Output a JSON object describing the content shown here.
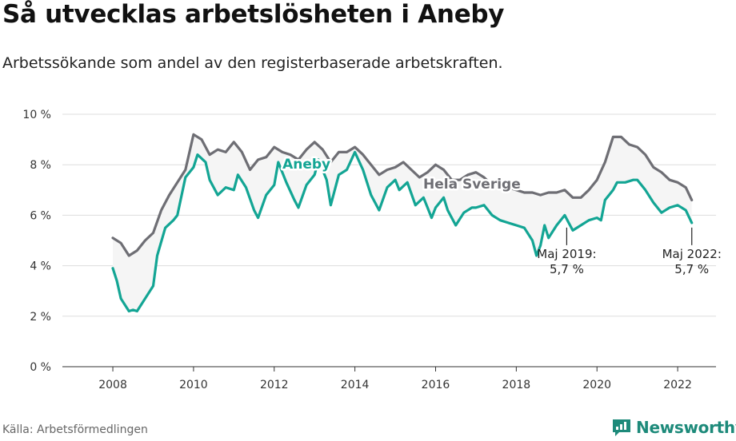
{
  "title": "Så utvecklas arbetslösheten i Aneby",
  "subtitle": "Arbetssökande som andel av den registerbaserade arbetskraften.",
  "source": "Källa: Arbetsförmedlingen",
  "brand": "Newsworthy",
  "colors": {
    "aneby": "#13a594",
    "sverige": "#6e6e74",
    "band": "#f5f5f5",
    "grid": "#dddddd",
    "brand": "#1d8a7a"
  },
  "chart_data": {
    "type": "line",
    "x_unit": "year",
    "xlim": [
      2006.75,
      2022.95
    ],
    "ylim": [
      0,
      10
    ],
    "y_ticks": [
      0,
      2,
      4,
      6,
      8,
      10
    ],
    "y_tick_labels": [
      "0 %",
      "2 %",
      "4 %",
      "6 %",
      "8 %",
      "10 %"
    ],
    "x_ticks": [
      2008,
      2010,
      2012,
      2014,
      2016,
      2018,
      2020,
      2022
    ],
    "x_tick_labels": [
      "2008",
      "2010",
      "2012",
      "2014",
      "2016",
      "2018",
      "2020",
      "2022"
    ],
    "grid": true,
    "series": [
      {
        "name": "Hela Sverige",
        "points": [
          [
            2008.0,
            5.1
          ],
          [
            2008.2,
            4.9
          ],
          [
            2008.4,
            4.4
          ],
          [
            2008.6,
            4.6
          ],
          [
            2008.8,
            5.0
          ],
          [
            2009.0,
            5.3
          ],
          [
            2009.2,
            6.2
          ],
          [
            2009.4,
            6.8
          ],
          [
            2009.6,
            7.3
          ],
          [
            2009.8,
            7.8
          ],
          [
            2010.0,
            9.2
          ],
          [
            2010.2,
            9.0
          ],
          [
            2010.4,
            8.4
          ],
          [
            2010.6,
            8.6
          ],
          [
            2010.8,
            8.5
          ],
          [
            2011.0,
            8.9
          ],
          [
            2011.2,
            8.5
          ],
          [
            2011.4,
            7.8
          ],
          [
            2011.6,
            8.2
          ],
          [
            2011.8,
            8.3
          ],
          [
            2012.0,
            8.7
          ],
          [
            2012.2,
            8.5
          ],
          [
            2012.4,
            8.4
          ],
          [
            2012.6,
            8.2
          ],
          [
            2012.8,
            8.6
          ],
          [
            2013.0,
            8.9
          ],
          [
            2013.2,
            8.6
          ],
          [
            2013.4,
            8.1
          ],
          [
            2013.6,
            8.5
          ],
          [
            2013.8,
            8.5
          ],
          [
            2014.0,
            8.7
          ],
          [
            2014.2,
            8.4
          ],
          [
            2014.4,
            8.0
          ],
          [
            2014.6,
            7.6
          ],
          [
            2014.8,
            7.8
          ],
          [
            2015.0,
            7.9
          ],
          [
            2015.2,
            8.1
          ],
          [
            2015.4,
            7.8
          ],
          [
            2015.6,
            7.5
          ],
          [
            2015.8,
            7.7
          ],
          [
            2016.0,
            8.0
          ],
          [
            2016.2,
            7.8
          ],
          [
            2016.4,
            7.4
          ],
          [
            2016.6,
            7.4
          ],
          [
            2016.8,
            7.6
          ],
          [
            2017.0,
            7.7
          ],
          [
            2017.2,
            7.5
          ],
          [
            2017.4,
            7.2
          ],
          [
            2017.6,
            7.3
          ],
          [
            2017.8,
            7.1
          ],
          [
            2018.0,
            7.0
          ],
          [
            2018.2,
            6.9
          ],
          [
            2018.4,
            6.9
          ],
          [
            2018.6,
            6.8
          ],
          [
            2018.8,
            6.9
          ],
          [
            2019.0,
            6.9
          ],
          [
            2019.2,
            7.0
          ],
          [
            2019.4,
            6.7
          ],
          [
            2019.6,
            6.7
          ],
          [
            2019.8,
            7.0
          ],
          [
            2020.0,
            7.4
          ],
          [
            2020.2,
            8.1
          ],
          [
            2020.4,
            9.1
          ],
          [
            2020.6,
            9.1
          ],
          [
            2020.8,
            8.8
          ],
          [
            2021.0,
            8.7
          ],
          [
            2021.2,
            8.4
          ],
          [
            2021.4,
            7.9
          ],
          [
            2021.6,
            7.7
          ],
          [
            2021.8,
            7.4
          ],
          [
            2022.0,
            7.3
          ],
          [
            2022.2,
            7.1
          ],
          [
            2022.35,
            6.6
          ]
        ]
      },
      {
        "name": "Aneby",
        "points": [
          [
            2008.0,
            3.9
          ],
          [
            2008.1,
            3.4
          ],
          [
            2008.2,
            2.7
          ],
          [
            2008.4,
            2.2
          ],
          [
            2008.5,
            2.25
          ],
          [
            2008.6,
            2.2
          ],
          [
            2008.8,
            2.7
          ],
          [
            2009.0,
            3.2
          ],
          [
            2009.1,
            4.4
          ],
          [
            2009.3,
            5.5
          ],
          [
            2009.5,
            5.8
          ],
          [
            2009.6,
            6.0
          ],
          [
            2009.8,
            7.5
          ],
          [
            2010.0,
            7.9
          ],
          [
            2010.1,
            8.4
          ],
          [
            2010.3,
            8.1
          ],
          [
            2010.4,
            7.4
          ],
          [
            2010.6,
            6.8
          ],
          [
            2010.8,
            7.1
          ],
          [
            2011.0,
            7.0
          ],
          [
            2011.1,
            7.6
          ],
          [
            2011.3,
            7.1
          ],
          [
            2011.5,
            6.2
          ],
          [
            2011.6,
            5.9
          ],
          [
            2011.8,
            6.8
          ],
          [
            2012.0,
            7.2
          ],
          [
            2012.1,
            8.1
          ],
          [
            2012.3,
            7.3
          ],
          [
            2012.5,
            6.6
          ],
          [
            2012.6,
            6.3
          ],
          [
            2012.8,
            7.2
          ],
          [
            2013.0,
            7.6
          ],
          [
            2013.1,
            8.2
          ],
          [
            2013.3,
            7.4
          ],
          [
            2013.4,
            6.4
          ],
          [
            2013.6,
            7.6
          ],
          [
            2013.8,
            7.8
          ],
          [
            2014.0,
            8.5
          ],
          [
            2014.2,
            7.8
          ],
          [
            2014.4,
            6.8
          ],
          [
            2014.6,
            6.2
          ],
          [
            2014.8,
            7.1
          ],
          [
            2015.0,
            7.4
          ],
          [
            2015.1,
            7.0
          ],
          [
            2015.3,
            7.3
          ],
          [
            2015.5,
            6.4
          ],
          [
            2015.7,
            6.7
          ],
          [
            2015.9,
            5.9
          ],
          [
            2016.0,
            6.3
          ],
          [
            2016.2,
            6.7
          ],
          [
            2016.3,
            6.2
          ],
          [
            2016.5,
            5.6
          ],
          [
            2016.7,
            6.1
          ],
          [
            2016.9,
            6.3
          ],
          [
            2017.0,
            6.3
          ],
          [
            2017.2,
            6.4
          ],
          [
            2017.4,
            6.0
          ],
          [
            2017.6,
            5.8
          ],
          [
            2017.8,
            5.7
          ],
          [
            2018.0,
            5.6
          ],
          [
            2018.2,
            5.5
          ],
          [
            2018.4,
            5.0
          ],
          [
            2018.5,
            4.4
          ],
          [
            2018.6,
            4.8
          ],
          [
            2018.7,
            5.6
          ],
          [
            2018.8,
            5.1
          ],
          [
            2019.0,
            5.6
          ],
          [
            2019.2,
            6.0
          ],
          [
            2019.3,
            5.7
          ],
          [
            2019.4,
            5.4
          ],
          [
            2019.6,
            5.6
          ],
          [
            2019.8,
            5.8
          ],
          [
            2020.0,
            5.9
          ],
          [
            2020.1,
            5.8
          ],
          [
            2020.2,
            6.6
          ],
          [
            2020.4,
            7.0
          ],
          [
            2020.5,
            7.3
          ],
          [
            2020.7,
            7.3
          ],
          [
            2020.9,
            7.4
          ],
          [
            2021.0,
            7.4
          ],
          [
            2021.2,
            7.0
          ],
          [
            2021.4,
            6.5
          ],
          [
            2021.6,
            6.1
          ],
          [
            2021.8,
            6.3
          ],
          [
            2022.0,
            6.4
          ],
          [
            2022.2,
            6.2
          ],
          [
            2022.35,
            5.7
          ]
        ]
      }
    ],
    "series_labels": [
      {
        "series": "Aneby",
        "text": "Aneby",
        "x": 2012.8,
        "y": 7.85
      },
      {
        "series": "Hela Sverige",
        "text": "Hela Sverige",
        "x": 2016.9,
        "y": 7.05
      }
    ],
    "annotations": [
      {
        "x": 2019.25,
        "y": 5.7,
        "line1": "Maj 2019:",
        "line2": "5,7 %"
      },
      {
        "x": 2022.35,
        "y": 5.7,
        "line1": "Maj 2022:",
        "line2": "5,7 %"
      }
    ]
  }
}
